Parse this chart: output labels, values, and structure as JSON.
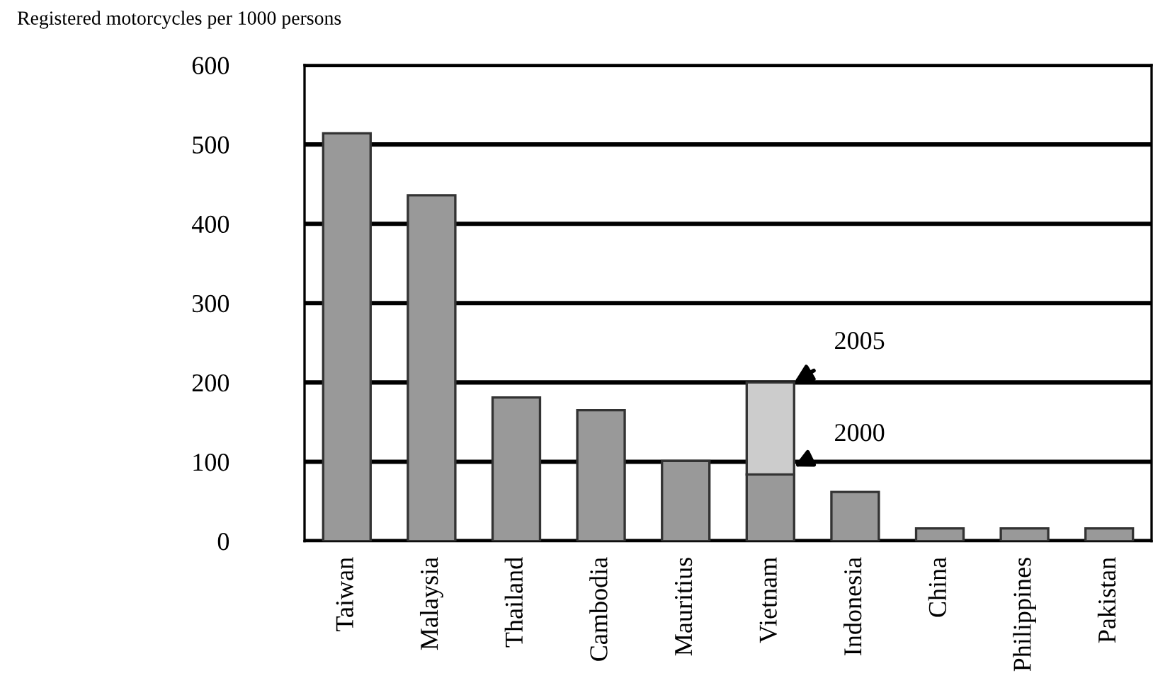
{
  "chart_data": {
    "type": "bar",
    "ylabel": "Registered motorcycles per 1000 persons",
    "categories": [
      "Taiwan",
      "Malaysia",
      "Thailand",
      "Cambodia",
      "Mauritius",
      "Vietnam",
      "Indonesia",
      "China",
      "Philippines",
      "Pakistan"
    ],
    "stacked": true,
    "series": [
      {
        "color": "#999999",
        "values": [
          514,
          436,
          181,
          165,
          101,
          84,
          62,
          16,
          16,
          16
        ]
      },
      {
        "color": "#cccccc",
        "values": [
          null,
          null,
          null,
          null,
          null,
          116,
          null,
          null,
          null,
          null
        ]
      }
    ],
    "annotations": [
      {
        "text": "2005",
        "x": "Vietnam",
        "y": 200
      },
      {
        "text": "2000",
        "x": "Vietnam",
        "y": 84
      }
    ],
    "ylim": [
      0,
      600
    ],
    "yticks": [
      0,
      100,
      200,
      300,
      400,
      500,
      600
    ],
    "grid": "y",
    "legend": false
  }
}
